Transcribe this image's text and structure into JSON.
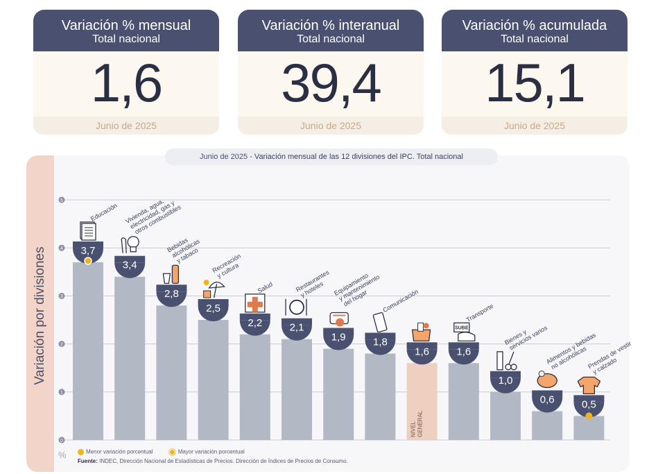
{
  "cards": [
    {
      "title": "Variación % mensual",
      "subtitle": "Total nacional",
      "value": "1,6",
      "date": "Junio de 2025"
    },
    {
      "title": "Variación % interanual",
      "subtitle": "Total nacional",
      "value": "39,4",
      "date": "Junio de 2025"
    },
    {
      "title": "Variación % acumulada",
      "subtitle": "Total nacional",
      "value": "15,1",
      "date": "Junio de 2025"
    }
  ],
  "chart_title_prefix": "Junio de 2025 - ",
  "chart_title_main": "Variación mensual de las 12 divisiones del IPC. Total nacional",
  "chart_data": {
    "type": "bar",
    "ylabel": "Variación por divisiones",
    "yunit": "%",
    "ylim": [
      0,
      5
    ],
    "yticks": [
      0,
      1,
      2,
      3,
      4,
      5
    ],
    "grid": true,
    "categories": [
      "Educación",
      "Vivienda, agua, electricidad, gas y otros combustibles",
      "Bebidas alcohólicas y tabaco",
      "Recreación y cultura",
      "Salud",
      "Restaurantes y hoteles",
      "Equipamiento y mantenimiento del hogar",
      "Comunicación",
      "NIVEL GENERAL",
      "Transporte",
      "Bienes y servicios varios",
      "Alimentos y bebidas no alcohólicas",
      "Prendas de vestir y calzado"
    ],
    "category_lines": [
      [
        "Educación"
      ],
      [
        "Vivienda, agua,",
        "electricidad, gas y",
        "otros combustibles"
      ],
      [
        "Bebidas",
        "alcohólicas",
        "y tabaco"
      ],
      [
        "Recreación",
        "y cultura"
      ],
      [
        "Salud"
      ],
      [
        "Restaurantes",
        "y hoteles"
      ],
      [
        "Equipamiento",
        "y mantenimiento",
        "del hogar"
      ],
      [
        "Comunicación"
      ],
      [
        "NIVEL",
        "GENERAL"
      ],
      [
        "Transporte"
      ],
      [
        "Bienes y",
        "servicios varios"
      ],
      [
        "Alimentos y bebidas",
        "no alcohólicas"
      ],
      [
        "Prendas de vestir",
        "y calzado"
      ]
    ],
    "values": [
      3.7,
      3.4,
      2.8,
      2.5,
      2.2,
      2.1,
      1.9,
      1.8,
      1.6,
      1.6,
      1.0,
      0.6,
      0.5
    ],
    "value_labels": [
      "3,7",
      "3,4",
      "2,8",
      "2,5",
      "2,2",
      "2,1",
      "1,9",
      "1,8",
      "1,6",
      "1,6",
      "1,0",
      "0,6",
      "0,5"
    ],
    "highlight_index": 8,
    "max_index": 0,
    "min_index": 12,
    "icons": [
      "book-icon",
      "bulb-plug-icon",
      "bottle-glass-icon",
      "beach-umbrella-icon",
      "first-aid-icon",
      "plate-cutlery-icon",
      "tools-icon",
      "phone-icon",
      "shopping-bag-icon",
      "bus-card-icon",
      "comb-scissors-icon",
      "chicken-icon",
      "shirt-icon"
    ],
    "colors": {
      "bar": "#b3b8c5",
      "highlight_bar": "#efcfbf",
      "badge": "#4a5070",
      "marker": "#f2b41c",
      "icon_bg": "#f4a56b"
    },
    "legend": {
      "min_label": "Menor variación porcentual",
      "max_label": "Mayor variación porcentual"
    },
    "icon_sup_label": "SUBE"
  },
  "source_label": "Fuente:",
  "source_text": " INDEC, Dirección Nacional de Estadísticas de Precios. Dirección de Índices de Precios de Consumo."
}
